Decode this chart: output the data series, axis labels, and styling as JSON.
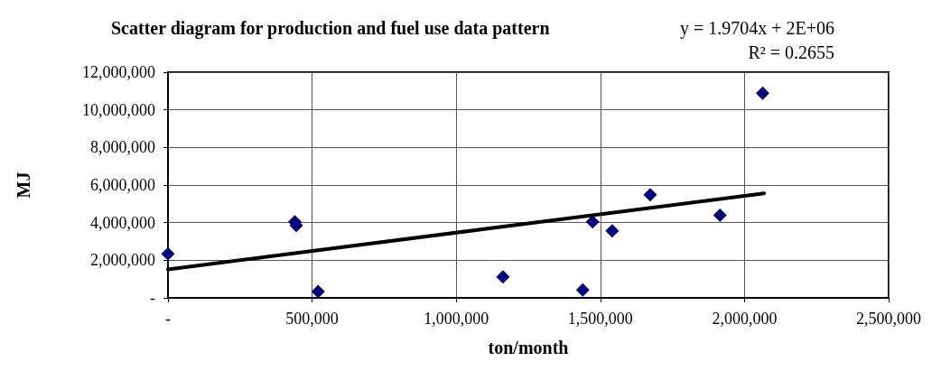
{
  "chart_data": {
    "type": "scatter",
    "title": "Scatter diagram for production and fuel use data pattern",
    "xlabel": "ton/month",
    "ylabel": "MJ",
    "annotations": [
      "y = 1.9704x + 2E+06",
      "R² = 0.2655"
    ],
    "series": [
      {
        "color": "#000080",
        "x": [
          0,
          440000,
          445000,
          521000,
          1162000,
          1439000,
          1473000,
          1541000,
          1673000,
          1915000,
          2063000
        ],
        "values": [
          2340000,
          4040000,
          3850000,
          340000,
          1120000,
          420000,
          4040000,
          3570000,
          5480000,
          4390000,
          10880000
        ]
      },
      {
        "type": "line",
        "color": "#000000",
        "marker": "none",
        "x": [
          0,
          2068000
        ],
        "values": [
          1510000,
          5560000
        ]
      }
    ],
    "xlim": [
      0,
      2500000
    ],
    "xticks": [
      {
        "value": 0,
        "label": "-"
      },
      {
        "value": 500000,
        "label": "500,000"
      },
      {
        "value": 1000000,
        "label": "1,000,000"
      },
      {
        "value": 1500000,
        "label": "1,500,000"
      },
      {
        "value": 2000000,
        "label": "2,000,000"
      },
      {
        "value": 2500000,
        "label": "2,500,000"
      }
    ],
    "ylim": [
      0,
      12000000
    ],
    "yticks": [
      {
        "value": 0,
        "label": "-"
      },
      {
        "value": 2000000,
        "label": "2,000,000"
      },
      {
        "value": 4000000,
        "label": "4,000,000"
      },
      {
        "value": 6000000,
        "label": "6,000,000"
      },
      {
        "value": 8000000,
        "label": "8,000,000"
      },
      {
        "value": 10000000,
        "label": "10,000,000"
      },
      {
        "value": 12000000,
        "label": "12,000,000"
      }
    ],
    "grid": true,
    "marker": "diamond"
  }
}
